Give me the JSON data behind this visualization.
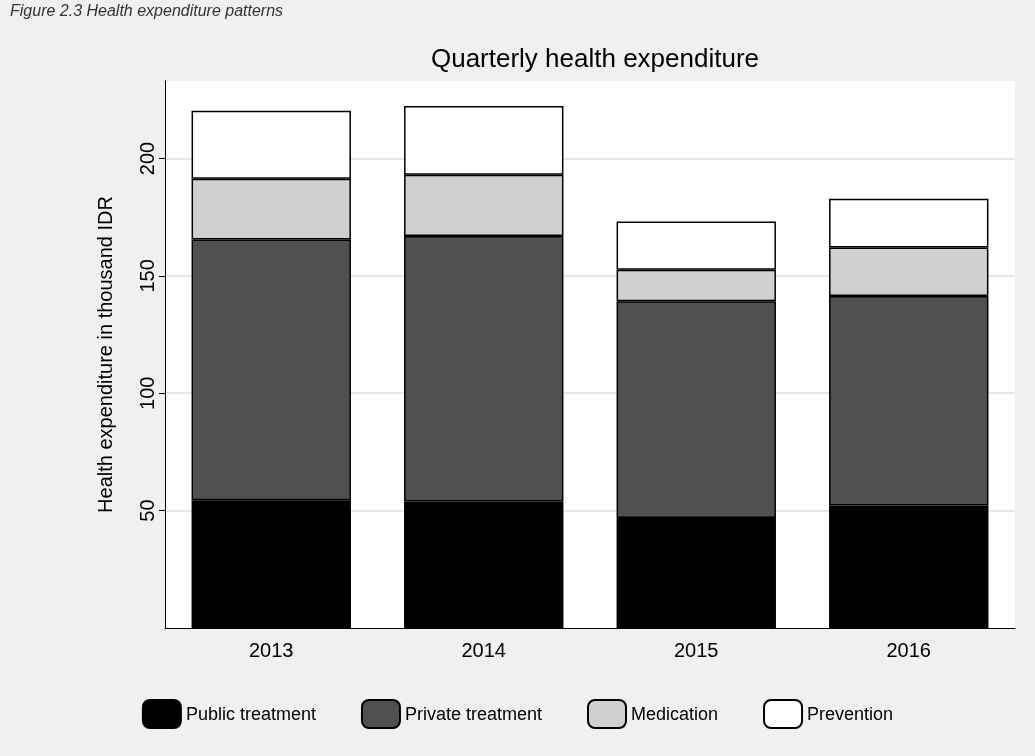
{
  "chart_data": {
    "type": "bar",
    "title": "Quarterly health expenditure",
    "ylabel": "Health expenditure in thousand IDR",
    "annotations": [
      "Figure 2.3 Health expenditure patterns"
    ],
    "categories": [
      "2013",
      "2014",
      "2015",
      "2016"
    ],
    "stacked": true,
    "series": [
      {
        "name": "Public treatment",
        "color": "#000000",
        "values": [
          54.4,
          53.9,
          46.9,
          52.2
        ]
      },
      {
        "name": "Private treatment",
        "color": "#505050",
        "values": [
          111.1,
          113.1,
          92.3,
          89.2
        ]
      },
      {
        "name": "Medication",
        "color": "#d0d0d0",
        "values": [
          25.9,
          26.1,
          13.4,
          20.7
        ]
      },
      {
        "name": "Prevention",
        "color": "#ffffff",
        "values": [
          28.9,
          29.2,
          20.5,
          20.7
        ]
      }
    ],
    "ylim": [
      0,
      233
    ],
    "yticks": [
      50,
      100,
      150,
      200
    ],
    "grid": "y",
    "legend": "bottom"
  }
}
